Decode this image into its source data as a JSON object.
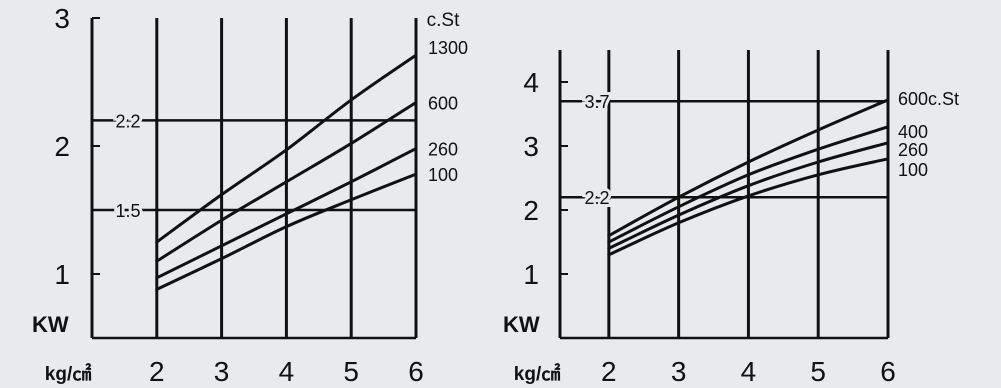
{
  "chart_data": [
    {
      "type": "line",
      "title": "",
      "xlabel": "kg/㎠",
      "ylabel": "KW",
      "xlim": [
        1.0,
        6.0
      ],
      "ylim": [
        0.5,
        3.0
      ],
      "x_ticks": [
        2,
        3,
        4,
        5,
        6
      ],
      "y_ticks": [
        1,
        2,
        3
      ],
      "grid": "vertical",
      "unit_label": "c.St",
      "reference_lines": [
        {
          "label": "2.2",
          "y": 2.2
        },
        {
          "label": "1.5",
          "y": 1.5
        }
      ],
      "series": [
        {
          "name": "1300",
          "x": [
            2,
            3,
            4,
            5,
            6
          ],
          "y": [
            1.25,
            1.62,
            1.97,
            2.36,
            2.71
          ]
        },
        {
          "name": "600",
          "x": [
            2,
            3,
            4,
            5,
            6
          ],
          "y": [
            1.1,
            1.42,
            1.72,
            2.02,
            2.34
          ]
        },
        {
          "name": "260",
          "x": [
            2,
            3,
            4,
            5,
            6
          ],
          "y": [
            0.97,
            1.22,
            1.47,
            1.72,
            1.98
          ]
        },
        {
          "name": "100",
          "x": [
            2,
            3,
            4,
            5,
            6
          ],
          "y": [
            0.88,
            1.12,
            1.37,
            1.58,
            1.78
          ]
        }
      ]
    },
    {
      "type": "line",
      "title": "",
      "xlabel": "kg/㎠",
      "ylabel": "KW",
      "xlim": [
        1.3,
        6.0
      ],
      "ylim": [
        0.0,
        4.5
      ],
      "x_ticks": [
        2,
        3,
        4,
        5,
        6
      ],
      "y_ticks": [
        1,
        2,
        3,
        4
      ],
      "grid": "vertical",
      "unit_label": "c.St",
      "reference_lines": [
        {
          "label": "3.7",
          "y": 3.7
        },
        {
          "label": "2.2",
          "y": 2.2
        }
      ],
      "series": [
        {
          "name": "600c.St",
          "x": [
            2,
            3,
            4,
            5,
            6
          ],
          "y": [
            1.6,
            2.2,
            2.75,
            3.25,
            3.72
          ]
        },
        {
          "name": "400",
          "x": [
            2,
            3,
            4,
            5,
            6
          ],
          "y": [
            1.5,
            2.05,
            2.55,
            2.95,
            3.3
          ]
        },
        {
          "name": "260",
          "x": [
            2,
            3,
            4,
            5,
            6
          ],
          "y": [
            1.4,
            1.92,
            2.38,
            2.75,
            3.05
          ]
        },
        {
          "name": "100",
          "x": [
            2,
            3,
            4,
            5,
            6
          ],
          "y": [
            1.3,
            1.8,
            2.22,
            2.55,
            2.8
          ]
        }
      ]
    }
  ]
}
